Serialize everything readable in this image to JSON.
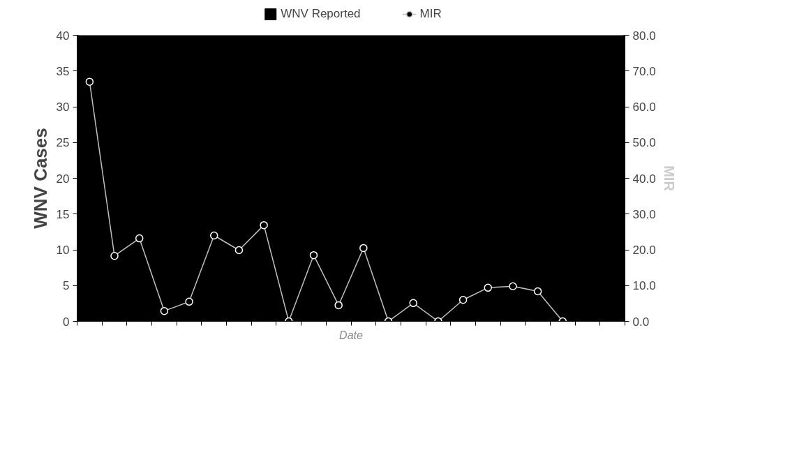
{
  "chart_data": {
    "type": "bar",
    "xlabel": "Date",
    "ylabel": "WNV Cases",
    "y2label": "MIR",
    "categories": [
      null,
      null,
      null,
      null,
      null,
      null,
      null,
      null,
      null,
      null,
      null,
      null,
      null,
      null,
      null,
      null,
      null,
      null,
      null,
      null,
      null,
      null
    ],
    "series": [
      {
        "name": "WNV Reported",
        "color": "#000000",
        "values": [
          null,
          null,
          null,
          null,
          null,
          null,
          null,
          null,
          null,
          null,
          null,
          null,
          null,
          null,
          null,
          null,
          null,
          null,
          null,
          null,
          null,
          null
        ]
      },
      {
        "name": "MIR",
        "type": "line",
        "axis": "y2",
        "color": "#c0c0c0",
        "marker": "circle",
        "values": [
          67,
          18.3,
          23.2,
          2.9,
          5.5,
          24.0,
          19.9,
          26.9,
          0,
          18.5,
          4.5,
          20.5,
          0,
          5.1,
          0,
          6.0,
          9.4,
          9.8,
          8.4,
          0,
          null,
          null
        ]
      }
    ],
    "ylim": [
      0,
      40
    ],
    "yticks": [
      0,
      5,
      10,
      15,
      20,
      25,
      30,
      35,
      40
    ],
    "y2lim": [
      0,
      80
    ],
    "y2ticks": [
      {
        "value": 0,
        "label": "0.0"
      },
      {
        "value": 10,
        "label": "10.0"
      },
      {
        "value": 20,
        "label": "20.0"
      },
      {
        "value": 30,
        "label": "30.0"
      },
      {
        "value": 40,
        "label": "40.0"
      },
      {
        "value": 50,
        "label": "50.0"
      },
      {
        "value": 60,
        "label": "60.0"
      },
      {
        "value": 70,
        "label": "70.0"
      },
      {
        "value": 80,
        "label": "80.0"
      }
    ],
    "grid": false,
    "legend": "top"
  }
}
